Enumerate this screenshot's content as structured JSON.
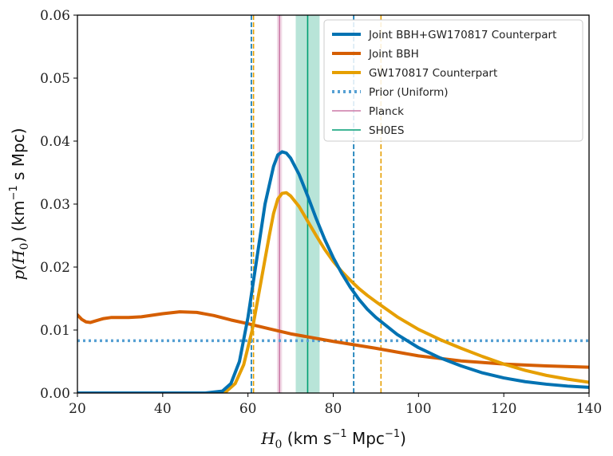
{
  "chart_data": {
    "type": "line",
    "xlabel_parts": {
      "var": "H",
      "sub": "0",
      "rest": " (km s",
      "sup": "−1",
      "end": " Mpc",
      "sup2": "−1",
      "close": ")"
    },
    "ylabel_parts": {
      "var": "p(H",
      "sub": "0",
      "rest": ") (km",
      "sup": "−1",
      "end": " s Mpc)"
    },
    "xlim": [
      20,
      140
    ],
    "ylim": [
      0,
      0.06
    ],
    "x_ticks": [
      20,
      40,
      60,
      80,
      100,
      120,
      140
    ],
    "y_ticks": [
      "0.00",
      "0.01",
      "0.02",
      "0.03",
      "0.04",
      "0.05",
      "0.06"
    ],
    "legend_position": "top-right",
    "series": [
      {
        "name": "Joint BBH+GW170817 Counterpart",
        "color": "#0072b2",
        "style": "solid",
        "x": [
          20,
          50,
          54,
          56,
          58,
          60,
          62,
          64,
          66,
          67,
          68,
          69,
          70,
          72,
          74,
          76,
          78,
          80,
          82,
          84,
          86,
          88,
          90,
          95,
          100,
          105,
          110,
          115,
          120,
          125,
          130,
          135,
          140
        ],
        "y": [
          0,
          0,
          0.0003,
          0.0015,
          0.005,
          0.012,
          0.021,
          0.03,
          0.036,
          0.0378,
          0.0383,
          0.0381,
          0.0373,
          0.0347,
          0.0313,
          0.0277,
          0.0244,
          0.0215,
          0.019,
          0.0168,
          0.0149,
          0.0133,
          0.012,
          0.0093,
          0.0072,
          0.0056,
          0.0043,
          0.0032,
          0.0024,
          0.0018,
          0.0014,
          0.0011,
          0.0009
        ]
      },
      {
        "name": "Joint BBH",
        "color": "#d55e00",
        "style": "solid",
        "x": [
          20,
          21,
          22,
          23,
          24,
          26,
          28,
          30,
          32,
          35,
          40,
          44,
          48,
          52,
          56,
          60,
          65,
          70,
          80,
          90,
          100,
          110,
          120,
          130,
          140
        ],
        "y": [
          0.0124,
          0.0117,
          0.0113,
          0.0112,
          0.0114,
          0.0118,
          0.012,
          0.012,
          0.012,
          0.0121,
          0.0126,
          0.0129,
          0.0128,
          0.0123,
          0.0116,
          0.011,
          0.0102,
          0.0094,
          0.0082,
          0.0071,
          0.0059,
          0.0051,
          0.0046,
          0.0043,
          0.0041
        ]
      },
      {
        "name": "GW170817 Counterpart",
        "color": "#e69f00",
        "style": "solid",
        "x": [
          20,
          52,
          55,
          57,
          59,
          61,
          63,
          65,
          66,
          67,
          68,
          69,
          70,
          72,
          74,
          76,
          78,
          80,
          82,
          84,
          86,
          88,
          90,
          95,
          100,
          105,
          110,
          115,
          120,
          125,
          130,
          135,
          140
        ],
        "y": [
          0,
          0,
          0.0003,
          0.0015,
          0.0045,
          0.01,
          0.0175,
          0.025,
          0.0285,
          0.0308,
          0.0317,
          0.0318,
          0.0313,
          0.0296,
          0.0273,
          0.025,
          0.0228,
          0.0209,
          0.0193,
          0.0179,
          0.0166,
          0.0155,
          0.0145,
          0.0121,
          0.0101,
          0.0085,
          0.0071,
          0.0058,
          0.0046,
          0.0036,
          0.0028,
          0.0022,
          0.0017
        ]
      },
      {
        "name": "Prior (Uniform)",
        "color": "#56a0d3",
        "style": "dotted",
        "x": [
          20,
          140
        ],
        "y": [
          0.0083,
          0.0083
        ]
      }
    ],
    "bands": [
      {
        "name": "Planck",
        "color": "#cc79a7",
        "center": 67.4,
        "low": 66.8,
        "high": 68.0
      },
      {
        "name": "SH0ES",
        "color": "#009e73",
        "center": 74.0,
        "low": 71.2,
        "high": 76.8
      }
    ],
    "vlines": [
      {
        "x": 60.8,
        "color": "#0072b2",
        "style": "dashed"
      },
      {
        "x": 84.8,
        "color": "#0072b2",
        "style": "dashed"
      },
      {
        "x": 61.3,
        "color": "#e69f00",
        "style": "dashed"
      },
      {
        "x": 91.2,
        "color": "#e69f00",
        "style": "dashed"
      }
    ],
    "legend_items": [
      {
        "label": "Joint BBH+GW170817 Counterpart",
        "color": "#0072b2",
        "style": "solid",
        "thick": true
      },
      {
        "label": "Joint BBH",
        "color": "#d55e00",
        "style": "solid",
        "thick": true
      },
      {
        "label": "GW170817 Counterpart",
        "color": "#e69f00",
        "style": "solid",
        "thick": true
      },
      {
        "label": "Prior (Uniform)",
        "color": "#56a0d3",
        "style": "dotted",
        "thick": true
      },
      {
        "label": "Planck",
        "color": "#cc79a7",
        "style": "solid",
        "thick": false
      },
      {
        "label": "SH0ES",
        "color": "#009e73",
        "style": "solid",
        "thick": false
      }
    ]
  }
}
